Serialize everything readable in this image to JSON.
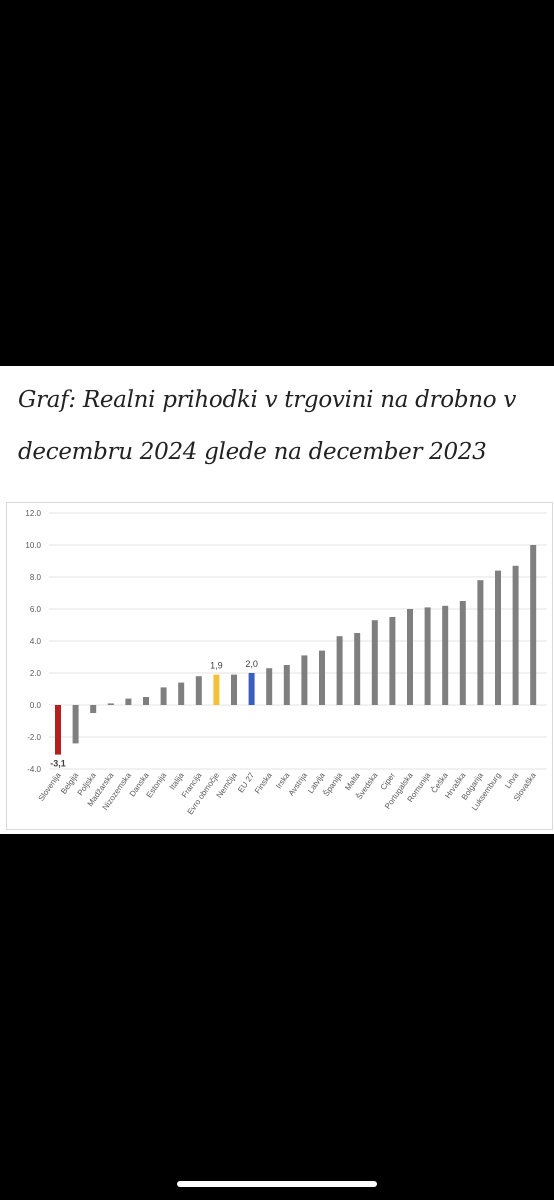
{
  "page": {
    "title": "Graf: Realni prihodki v trgovini na drobno v decembru 2024 glede na december 2023"
  },
  "chart_data": {
    "type": "bar",
    "title": "Graf: Realni prihodki v trgovini na drobno v decembru 2024 glede na december 2023",
    "xlabel": "",
    "ylabel": "",
    "ylim": [
      -4.0,
      12.0
    ],
    "yticks": [
      "-4.0",
      "-2.0",
      "0.0",
      "2.0",
      "4.0",
      "6.0",
      "8.0",
      "10.0",
      "12.0"
    ],
    "grid": true,
    "legend": "none",
    "categories": [
      "Slovenija",
      "Belgija",
      "Poljska",
      "Madžarska",
      "Nizozemska",
      "Danska",
      "Estonija",
      "Italija",
      "Francija",
      "Evro območje",
      "Nemčija",
      "EU 27",
      "Finska",
      "Irska",
      "Avstrija",
      "Latvija",
      "Španija",
      "Malta",
      "Švedska",
      "Ciper",
      "Portugalska",
      "Romunija",
      "Češka",
      "Hrvaška",
      "Bolgarija",
      "Luksemburg",
      "Litva",
      "Slovaška"
    ],
    "values": [
      -3.1,
      -2.4,
      -0.5,
      0.1,
      0.4,
      0.5,
      1.1,
      1.4,
      1.8,
      1.9,
      1.9,
      2.0,
      2.3,
      2.5,
      3.1,
      3.4,
      4.3,
      4.5,
      5.3,
      5.5,
      6.0,
      6.1,
      6.2,
      6.5,
      7.8,
      8.4,
      8.7,
      10.0
    ],
    "data_labels": [
      {
        "category": "Slovenija",
        "text": "-3,1"
      },
      {
        "category": "Evro območje",
        "text": "1,9"
      },
      {
        "category": "EU 27",
        "text": "2,0"
      }
    ],
    "colors": {
      "default": "#7f7f7f",
      "Slovenija": "#b41f1f",
      "Evro območje": "#f2c03b",
      "EU 27": "#3a5fbf",
      "grid": "#e3e3e3",
      "axis_text": "#595959"
    }
  }
}
